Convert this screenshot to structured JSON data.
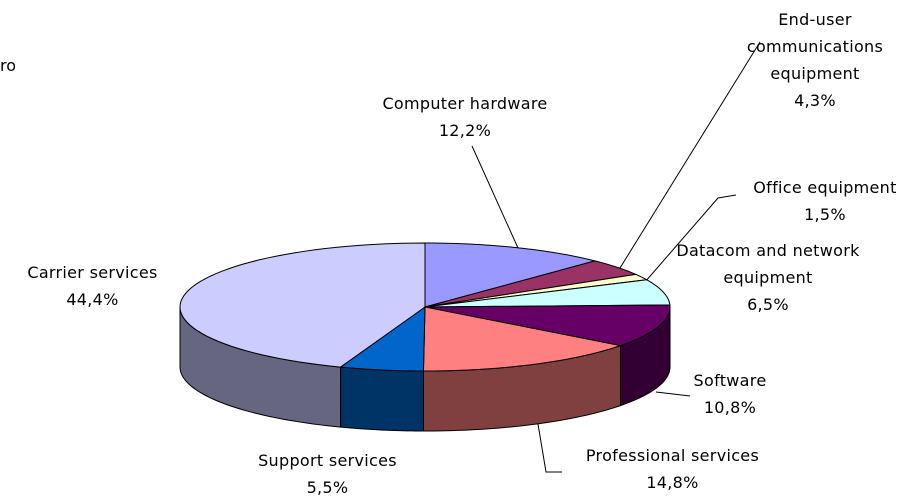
{
  "chart_data": {
    "type": "pie3d",
    "corner_text": "ro",
    "categories": [
      "Computer hardware",
      "End-user communications equipment",
      "Office equipment",
      "Datacom and network equipment",
      "Software",
      "Professional services",
      "Support services",
      "Carrier services"
    ],
    "values": [
      12.2,
      4.3,
      1.5,
      6.5,
      10.8,
      14.8,
      5.5,
      44.4
    ],
    "value_labels": [
      "12,2%",
      "4,3%",
      "1,5%",
      "6,5%",
      "10,8%",
      "14,8%",
      "5,5%",
      "44,4%"
    ],
    "colors": [
      "#9999ff",
      "#993366",
      "#ffffcc",
      "#ccffff",
      "#660066",
      "#ff8080",
      "#0066cc",
      "#ccccff"
    ]
  }
}
